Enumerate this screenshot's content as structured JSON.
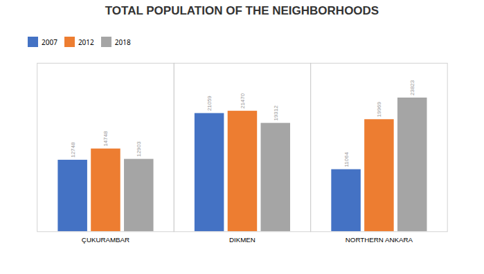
{
  "chart_data": {
    "type": "bar",
    "title": "TOTAL POPULATION OF THE NEIGHBORHOODS",
    "categories": [
      "ÇUKURAMBAR",
      "DIKMEN",
      "NORTHERN ANKARA"
    ],
    "series": [
      {
        "name": "2007",
        "color": "#4472C4",
        "values": [
          12748,
          21059,
          11064
        ]
      },
      {
        "name": "2012",
        "color": "#ED7D31",
        "values": [
          14748,
          21470,
          19969
        ]
      },
      {
        "name": "2018",
        "color": "#A5A5A5",
        "values": [
          12903,
          19312,
          23823
        ]
      }
    ],
    "ylim": [
      0,
      30000
    ],
    "yticks": [],
    "grid": false,
    "legend": "top",
    "data_labels": true,
    "tick_labels": "x"
  }
}
